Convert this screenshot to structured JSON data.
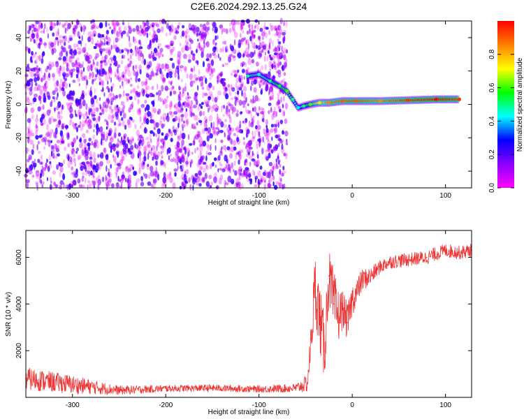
{
  "figure_title": "C2E6.2024.292.13.25.G24",
  "chart_data": [
    {
      "type": "heatmap",
      "xlabel": "Height of straight line (km)",
      "ylabel": "Frequency (Hz)",
      "xlim": [
        -350,
        128
      ],
      "ylim": [
        -50,
        50
      ],
      "x_ticks": [
        -300,
        -200,
        -100,
        0,
        100
      ],
      "y_ticks": [
        -40,
        -20,
        0,
        20,
        40
      ],
      "colorbar": {
        "label": "Normalized spectral amplitude",
        "range": [
          0,
          1
        ],
        "ticks": [
          "0.0",
          "0.2",
          "0.4",
          "0.6",
          "0.8"
        ],
        "colormap": [
          "#ff00ff",
          "#8a00ff",
          "#0000ff",
          "#00ffff",
          "#00ff00",
          "#ffff00",
          "#ff8000",
          "#ff0000"
        ]
      },
      "noise_region_x": [
        -350,
        -70
      ],
      "noise_amplitude_range": [
        0.0,
        0.25
      ],
      "signal_track": [
        {
          "x": -112,
          "y": 17,
          "amplitude": 0.5
        },
        {
          "x": -100,
          "y": 18,
          "amplitude": 0.45
        },
        {
          "x": -88,
          "y": 14,
          "amplitude": 0.5
        },
        {
          "x": -78,
          "y": 11,
          "amplitude": 0.55
        },
        {
          "x": -70,
          "y": 8,
          "amplitude": 0.6
        },
        {
          "x": -64,
          "y": 3,
          "amplitude": 0.5
        },
        {
          "x": -58,
          "y": -2,
          "amplitude": 0.45
        },
        {
          "x": -52,
          "y": -1,
          "amplitude": 0.5
        },
        {
          "x": -45,
          "y": 0,
          "amplitude": 0.6
        },
        {
          "x": -35,
          "y": 1,
          "amplitude": 0.75
        },
        {
          "x": -25,
          "y": 1,
          "amplitude": 0.85
        },
        {
          "x": -10,
          "y": 2,
          "amplitude": 0.9
        },
        {
          "x": 5,
          "y": 2,
          "amplitude": 0.9
        },
        {
          "x": 30,
          "y": 2,
          "amplitude": 0.85
        },
        {
          "x": 60,
          "y": 2.5,
          "amplitude": 0.95
        },
        {
          "x": 90,
          "y": 3,
          "amplitude": 1.0
        },
        {
          "x": 115,
          "y": 3,
          "amplitude": 0.95
        }
      ]
    },
    {
      "type": "line",
      "xlabel": "Height of straight line (km)",
      "ylabel": "SNR (10 * v/v)",
      "xlim": [
        -350,
        128
      ],
      "ylim": [
        0,
        7150
      ],
      "x_ticks": [
        -300,
        -200,
        -100,
        0,
        100
      ],
      "y_ticks": [
        2000,
        4000,
        6000
      ],
      "color": "#ee3333",
      "series": [
        {
          "x": [
            -350,
            -300,
            -250,
            -200,
            -150,
            -100,
            -60,
            -48,
            -44,
            -40,
            -35,
            -30,
            -25,
            -20,
            -15,
            -10,
            -5,
            0,
            5,
            10,
            20,
            30,
            40,
            60,
            80,
            100,
            115,
            128
          ],
          "y": [
            800,
            550,
            300,
            380,
            400,
            350,
            400,
            600,
            2500,
            4800,
            3500,
            2000,
            5200,
            4000,
            3500,
            3800,
            3200,
            4200,
            4500,
            5000,
            5200,
            5600,
            5800,
            5900,
            6000,
            6300,
            6200,
            6300
          ],
          "spread": [
            500,
            400,
            200,
            150,
            150,
            150,
            200,
            400,
            800,
            1500,
            1500,
            1500,
            1200,
            1500,
            1200,
            800,
            800,
            700,
            600,
            500,
            400,
            300,
            300,
            300,
            300,
            300,
            300,
            300
          ]
        }
      ]
    }
  ]
}
